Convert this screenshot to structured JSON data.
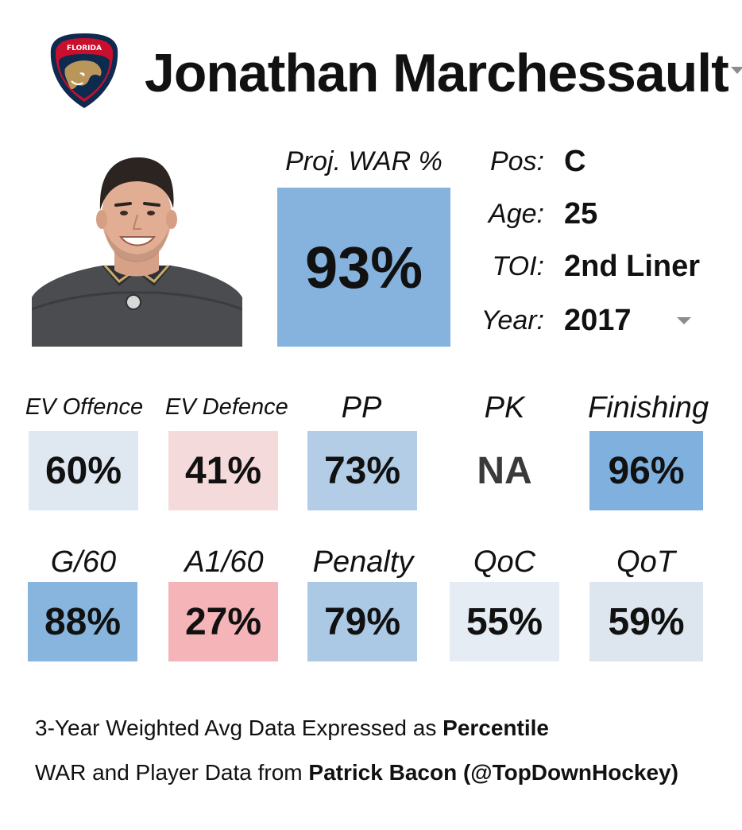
{
  "team_logo": {
    "text": "FLORIDA"
  },
  "player": {
    "name": "Jonathan Marchessault"
  },
  "war": {
    "label": "Proj. WAR %",
    "value": "93%",
    "color": "#85b3de"
  },
  "info": [
    {
      "label": "Pos:",
      "value": "C"
    },
    {
      "label": "Age:",
      "value": "25"
    },
    {
      "label": "TOI:",
      "value": "2nd Liner"
    },
    {
      "label": "Year:",
      "value": "2017"
    }
  ],
  "stats_row1": [
    {
      "label": "EV Offence",
      "value": "60%",
      "color": "#dfe8f1"
    },
    {
      "label": "EV Defence",
      "value": "41%",
      "color": "#f5dadc"
    },
    {
      "label": "PP",
      "value": "73%",
      "color": "#b3cde6"
    },
    {
      "label": "PK",
      "value": "NA",
      "color": "#ffffff"
    },
    {
      "label": "Finishing",
      "value": "96%",
      "color": "#7fb0de"
    }
  ],
  "stats_row2": [
    {
      "label": "G/60",
      "value": "88%",
      "color": "#87b5de"
    },
    {
      "label": "A1/60",
      "value": "27%",
      "color": "#f4b4b8"
    },
    {
      "label": "Penalty",
      "value": "79%",
      "color": "#abc8e4"
    },
    {
      "label": "QoC",
      "value": "55%",
      "color": "#e6ecf3"
    },
    {
      "label": "QoT",
      "value": "59%",
      "color": "#dde6ef"
    }
  ],
  "footer": {
    "line1_prefix": "3-Year Weighted Avg Data Expressed as ",
    "line1_bold": "Percentile",
    "line2_prefix": "WAR and Player Data from ",
    "line2_bold": "Patrick Bacon (@TopDownHockey)"
  }
}
